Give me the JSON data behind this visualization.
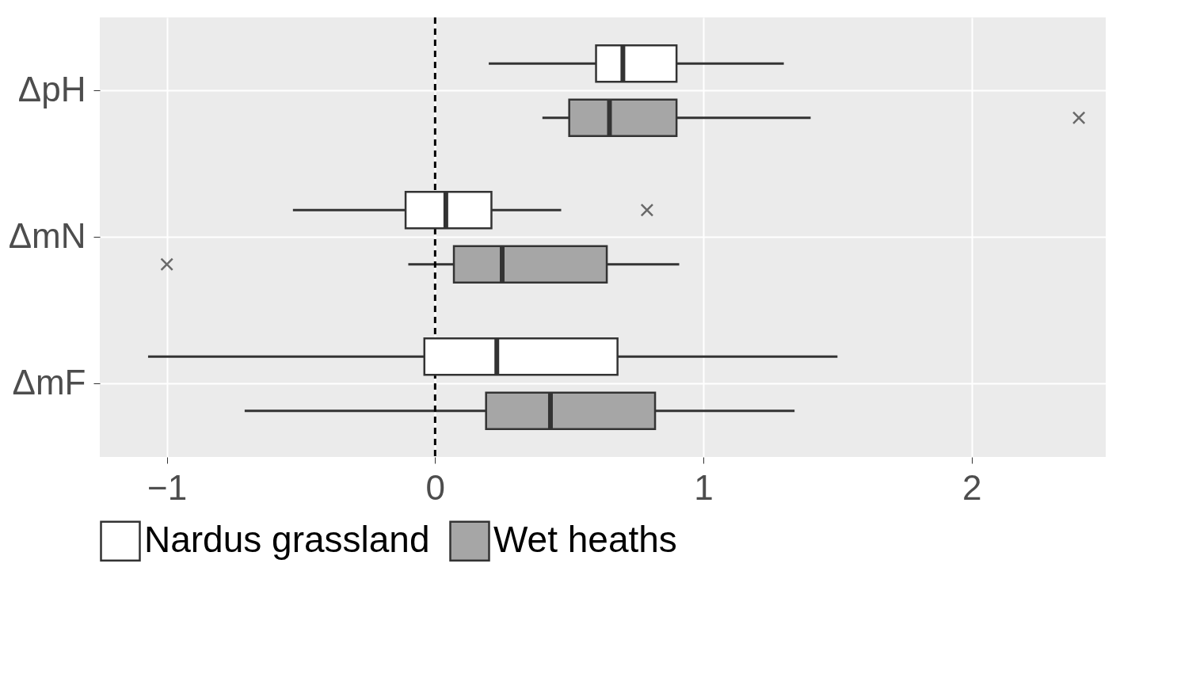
{
  "chart_data": {
    "type": "box",
    "orientation": "horizontal",
    "categories": [
      "ΔpH",
      "ΔmN",
      "ΔmF"
    ],
    "series": [
      {
        "name": "Nardus grassland",
        "color": "#ffffff",
        "boxes": [
          {
            "low": 0.2,
            "q1": 0.6,
            "median": 0.7,
            "q3": 0.9,
            "high": 1.3
          },
          {
            "low": -0.53,
            "q1": -0.11,
            "median": 0.04,
            "q3": 0.21,
            "high": 0.47,
            "outliers": [
              0.79
            ]
          },
          {
            "low": -1.07,
            "q1": -0.04,
            "median": 0.23,
            "q3": 0.68,
            "high": 1.5
          }
        ]
      },
      {
        "name": "Wet heaths",
        "color": "#a6a6a6",
        "boxes": [
          {
            "low": 0.4,
            "q1": 0.5,
            "median": 0.65,
            "q3": 0.9,
            "high": 1.4,
            "outliers": [
              2.4
            ]
          },
          {
            "low": -0.1,
            "q1": 0.07,
            "median": 0.25,
            "q3": 0.64,
            "high": 0.91,
            "outliers": [
              -1.0
            ]
          },
          {
            "low": -0.71,
            "q1": 0.19,
            "median": 0.43,
            "q3": 0.82,
            "high": 1.34
          }
        ]
      }
    ],
    "xlim": [
      -1.25,
      2.5
    ],
    "xticks": [
      -1,
      0,
      1,
      2
    ],
    "grid": true,
    "legend": "bottom",
    "ref_lines": [
      {
        "axis": "x",
        "value": 0,
        "line_style": "dashed",
        "color": "#000000"
      }
    ]
  }
}
